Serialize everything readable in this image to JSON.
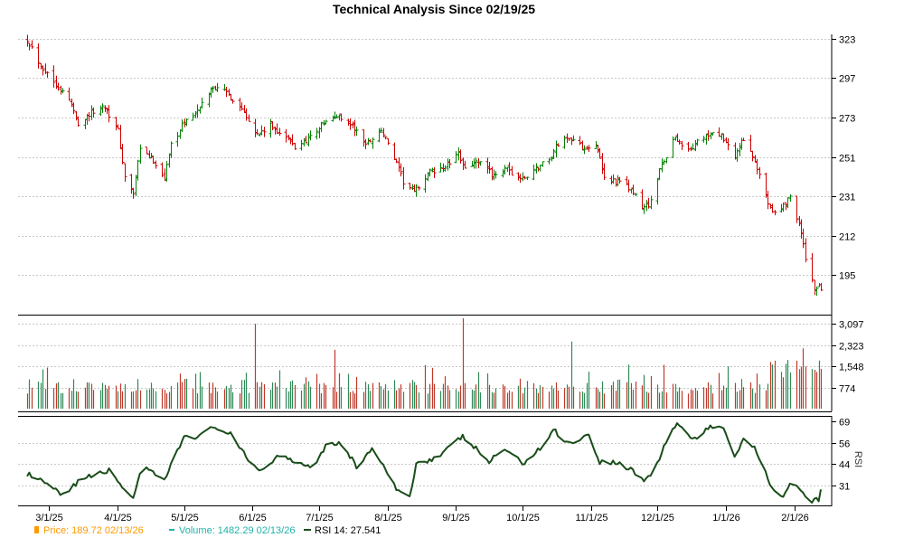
{
  "chart_data": {
    "type": "ohlc",
    "title": "Technical Analysis Since 02/19/25",
    "x_tick_labels": [
      "3/1/25",
      "4/1/25",
      "5/1/25",
      "6/1/25",
      "7/1/25",
      "8/1/25",
      "9/1/25",
      "10/1/25",
      "11/1/25",
      "12/1/25",
      "1/1/26",
      "2/1/26"
    ],
    "price_panel": {
      "y_ticks": [
        323,
        297,
        273,
        251,
        231,
        212,
        195
      ],
      "ylim": [
        180,
        326
      ],
      "scale": "log",
      "grid": true,
      "up_color": "#008000",
      "down_color": "#cc0000",
      "anchors": [
        [
          "2025-02-19",
          323
        ],
        [
          "2025-02-25",
          305
        ],
        [
          "2025-03-03",
          295
        ],
        [
          "2025-03-10",
          283
        ],
        [
          "2025-03-14",
          270
        ],
        [
          "2025-03-20",
          276
        ],
        [
          "2025-03-26",
          280
        ],
        [
          "2025-04-01",
          265
        ],
        [
          "2025-04-04",
          240
        ],
        [
          "2025-04-08",
          232
        ],
        [
          "2025-04-11",
          255
        ],
        [
          "2025-04-17",
          249
        ],
        [
          "2025-04-22",
          240
        ],
        [
          "2025-04-25",
          258
        ],
        [
          "2025-05-01",
          270
        ],
        [
          "2025-05-08",
          278
        ],
        [
          "2025-05-13",
          290
        ],
        [
          "2025-05-16",
          292
        ],
        [
          "2025-05-22",
          285
        ],
        [
          "2025-05-28",
          277
        ],
        [
          "2025-06-03",
          263
        ],
        [
          "2025-06-09",
          268
        ],
        [
          "2025-06-16",
          262
        ],
        [
          "2025-06-20",
          256
        ],
        [
          "2025-06-27",
          262
        ],
        [
          "2025-07-03",
          270
        ],
        [
          "2025-07-10",
          274
        ],
        [
          "2025-07-16",
          268
        ],
        [
          "2025-07-22",
          258
        ],
        [
          "2025-07-29",
          266
        ],
        [
          "2025-08-04",
          250
        ],
        [
          "2025-08-08",
          238
        ],
        [
          "2025-08-13",
          233
        ],
        [
          "2025-08-20",
          243
        ],
        [
          "2025-08-26",
          245
        ],
        [
          "2025-09-02",
          252
        ],
        [
          "2025-09-05",
          246
        ],
        [
          "2025-09-11",
          248
        ],
        [
          "2025-09-17",
          242
        ],
        [
          "2025-09-24",
          244
        ],
        [
          "2025-10-01",
          239
        ],
        [
          "2025-10-07",
          245
        ],
        [
          "2025-10-13",
          250
        ],
        [
          "2025-10-17",
          258
        ],
        [
          "2025-10-22",
          262
        ],
        [
          "2025-10-28",
          256
        ],
        [
          "2025-11-03",
          258
        ],
        [
          "2025-11-07",
          240
        ],
        [
          "2025-11-13",
          238
        ],
        [
          "2025-11-19",
          234
        ],
        [
          "2025-11-24",
          225
        ],
        [
          "2025-11-28",
          228
        ],
        [
          "2025-12-03",
          247
        ],
        [
          "2025-12-09",
          262
        ],
        [
          "2025-12-15",
          254
        ],
        [
          "2025-12-22",
          262
        ],
        [
          "2025-12-29",
          264
        ],
        [
          "2026-01-05",
          250
        ],
        [
          "2026-01-08",
          261
        ],
        [
          "2026-01-14",
          248
        ],
        [
          "2026-01-20",
          228
        ],
        [
          "2026-01-23",
          223
        ],
        [
          "2026-01-27",
          226
        ],
        [
          "2026-01-30",
          231
        ],
        [
          "2026-02-03",
          218
        ],
        [
          "2026-02-06",
          202
        ],
        [
          "2026-02-10",
          190
        ],
        [
          "2026-02-13",
          189.72
        ]
      ]
    },
    "volume_panel": {
      "y_ticks": [
        3097,
        2323,
        1548,
        774
      ],
      "ylim": [
        0,
        3300
      ],
      "grid": true,
      "spikes": [
        [
          "2025-06-02",
          3097
        ],
        [
          "2025-07-08",
          2150
        ],
        [
          "2025-09-04",
          3300
        ],
        [
          "2025-10-23",
          2450
        ],
        [
          "2025-02-28",
          1500
        ],
        [
          "2025-12-04",
          1600
        ],
        [
          "2026-01-02",
          1550
        ],
        [
          "2026-02-05",
          2200
        ],
        [
          "2026-02-02",
          1750
        ]
      ]
    },
    "rsi_panel": {
      "y_ticks": [
        69,
        56,
        44,
        31
      ],
      "ylim": [
        20,
        71
      ],
      "ylabel": "RSI",
      "line_color": "#1a4d1a",
      "anchors": [
        [
          "2025-02-19",
          38
        ],
        [
          "2025-03-01",
          31
        ],
        [
          "2025-03-08",
          24
        ],
        [
          "2025-03-14",
          34
        ],
        [
          "2025-03-21",
          37
        ],
        [
          "2025-03-28",
          40
        ],
        [
          "2025-04-02",
          32
        ],
        [
          "2025-04-08",
          24
        ],
        [
          "2025-04-12",
          42
        ],
        [
          "2025-04-22",
          34
        ],
        [
          "2025-05-01",
          60
        ],
        [
          "2025-05-08",
          60
        ],
        [
          "2025-05-15",
          66
        ],
        [
          "2025-05-22",
          61
        ],
        [
          "2025-05-30",
          46
        ],
        [
          "2025-06-05",
          40
        ],
        [
          "2025-06-14",
          50
        ],
        [
          "2025-06-22",
          44
        ],
        [
          "2025-06-29",
          43
        ],
        [
          "2025-07-05",
          57
        ],
        [
          "2025-07-12",
          55
        ],
        [
          "2025-07-18",
          42
        ],
        [
          "2025-07-25",
          53
        ],
        [
          "2025-08-01",
          38
        ],
        [
          "2025-08-06",
          27
        ],
        [
          "2025-08-11",
          25
        ],
        [
          "2025-08-14",
          44
        ],
        [
          "2025-08-24",
          48
        ],
        [
          "2025-09-04",
          60
        ],
        [
          "2025-09-09",
          54
        ],
        [
          "2025-09-16",
          45
        ],
        [
          "2025-09-23",
          53
        ],
        [
          "2025-10-01",
          44
        ],
        [
          "2025-10-10",
          54
        ],
        [
          "2025-10-15",
          64
        ],
        [
          "2025-10-22",
          56
        ],
        [
          "2025-10-31",
          61
        ],
        [
          "2025-11-05",
          45
        ],
        [
          "2025-11-12",
          45
        ],
        [
          "2025-11-20",
          40
        ],
        [
          "2025-11-25",
          34
        ],
        [
          "2025-11-29",
          38
        ],
        [
          "2025-12-05",
          57
        ],
        [
          "2025-12-10",
          68
        ],
        [
          "2025-12-17",
          58
        ],
        [
          "2025-12-25",
          65
        ],
        [
          "2025-12-31",
          66
        ],
        [
          "2026-01-05",
          48
        ],
        [
          "2026-01-09",
          59
        ],
        [
          "2026-01-14",
          53
        ],
        [
          "2026-01-18",
          44
        ],
        [
          "2026-01-21",
          32
        ],
        [
          "2026-01-26",
          24
        ],
        [
          "2026-01-31",
          34
        ],
        [
          "2026-02-04",
          28
        ],
        [
          "2026-02-08",
          21
        ],
        [
          "2026-02-12",
          23
        ],
        [
          "2026-02-13",
          27.541
        ]
      ]
    },
    "legend": [
      {
        "label": "Price: 189.72  02/13/26",
        "color": "#ff9900",
        "marker": "bar"
      },
      {
        "label": "Volume: 1482.29  02/13/26",
        "color": "#20b2aa",
        "marker": "dash"
      },
      {
        "label": "RSI 14: 27.541",
        "color": "#1a4d1a",
        "marker": "line"
      }
    ]
  }
}
